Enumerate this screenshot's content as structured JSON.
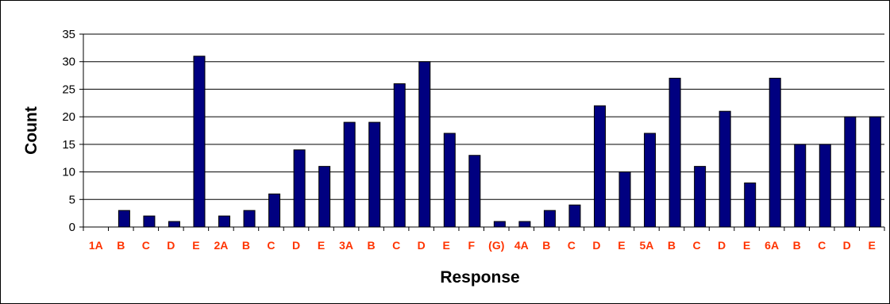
{
  "chart_data": {
    "type": "bar",
    "title": "",
    "xlabel": "Response",
    "ylabel": "Count",
    "ylim": [
      0,
      35
    ],
    "yticks": [
      0,
      5,
      10,
      15,
      20,
      25,
      30,
      35
    ],
    "grid": true,
    "legend": "none",
    "categories": [
      "1A",
      "B",
      "C",
      "D",
      "E",
      "2A",
      "B",
      "C",
      "D",
      "E",
      "3A",
      "B",
      "C",
      "D",
      "E",
      "F",
      "(G)",
      "4A",
      "B",
      "C",
      "D",
      "E",
      "5A",
      "B",
      "C",
      "D",
      "E",
      "6A",
      "B",
      "C",
      "D",
      "E"
    ],
    "series": [
      {
        "values": [
          0,
          3,
          2,
          1,
          31,
          2,
          3,
          6,
          14,
          11,
          19,
          19,
          26,
          30,
          17,
          13,
          1,
          1,
          3,
          4,
          22,
          10,
          17,
          27,
          11,
          21,
          8,
          27,
          15,
          15,
          20,
          20
        ]
      }
    ],
    "colors": {
      "bar_fill": "#000080",
      "bar_stroke": "#000000",
      "tick_label_x": "#ff3300",
      "gridline": "#000000",
      "frame": "#000000"
    }
  }
}
